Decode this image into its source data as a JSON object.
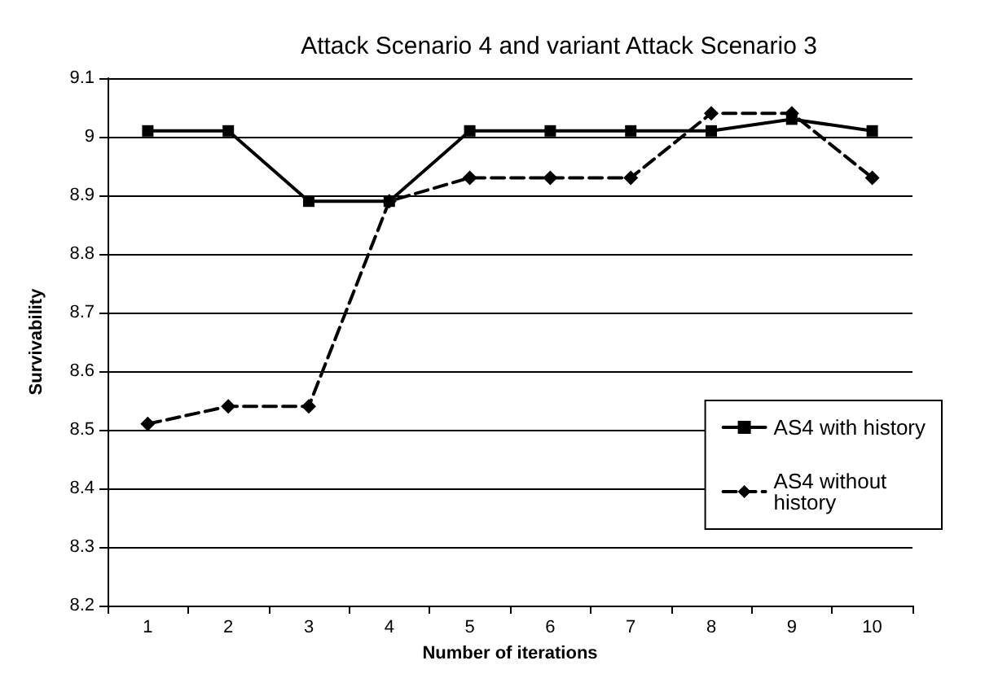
{
  "chart_data": {
    "type": "line",
    "title": "Attack Scenario 4 and variant Attack Scenario 3",
    "xlabel": "Number of iterations",
    "ylabel": "Survivability",
    "categories": [
      "1",
      "2",
      "3",
      "4",
      "5",
      "6",
      "7",
      "8",
      "9",
      "10"
    ],
    "series": [
      {
        "name": "AS4 with history",
        "color": "#000000",
        "marker": "square",
        "line_style": "solid",
        "values": [
          9.01,
          9.01,
          8.89,
          8.89,
          9.01,
          9.01,
          9.01,
          9.01,
          9.03,
          9.01
        ]
      },
      {
        "name": "AS4 without history",
        "color": "#000000",
        "marker": "diamond",
        "line_style": "dashed",
        "values": [
          8.51,
          8.54,
          8.54,
          8.89,
          8.93,
          8.93,
          8.93,
          9.04,
          9.04,
          8.93
        ]
      }
    ],
    "ylim": [
      8.2,
      9.1
    ],
    "yticks": [
      8.2,
      8.3,
      8.4,
      8.5,
      8.6,
      8.7,
      8.8,
      8.9,
      9,
      9.1
    ],
    "grid": "y",
    "legend": "bottom right"
  }
}
